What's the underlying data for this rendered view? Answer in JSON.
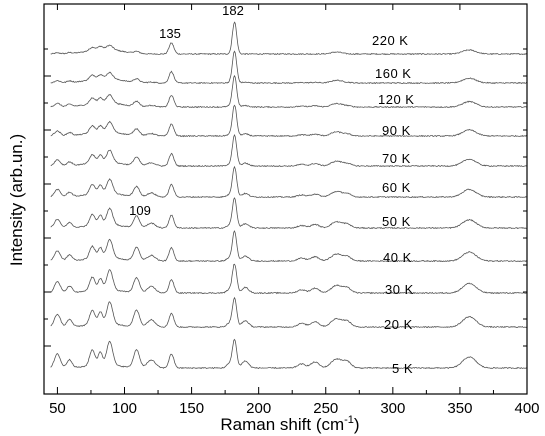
{
  "chart_data": {
    "type": "line",
    "title": "",
    "xlabel": "Raman shift  (cm",
    "xlabel_sup": "-1",
    "xlabel_close": ")",
    "ylabel": "Intensity  (arb.un.)",
    "xlim": [
      40,
      400
    ],
    "x_ticks": [
      50,
      100,
      150,
      200,
      250,
      300,
      350,
      400
    ],
    "x_tick_labels": [
      "50",
      "100",
      "150",
      "200",
      "250",
      "300",
      "350",
      "400"
    ],
    "y_ticks_count": 12,
    "y_tick_labels_shown": false,
    "grid": false,
    "legend": "none",
    "series": [
      {
        "name": "220 K",
        "offset": 10
      },
      {
        "name": "160 K",
        "offset": 9
      },
      {
        "name": "120 K",
        "offset": 8
      },
      {
        "name": "90 K",
        "offset": 7
      },
      {
        "name": "70 K",
        "offset": 6
      },
      {
        "name": "60 K",
        "offset": 5
      },
      {
        "name": "50 K",
        "offset": 4
      },
      {
        "name": "40 K",
        "offset": 3
      },
      {
        "name": "30 K",
        "offset": 2
      },
      {
        "name": "20 K",
        "offset": 1
      },
      {
        "name": "5 K",
        "offset": 0
      }
    ],
    "annotations": [
      {
        "text": "182",
        "x": 182
      },
      {
        "text": "135",
        "x": 135
      },
      {
        "text": "109",
        "x": 109
      }
    ]
  }
}
